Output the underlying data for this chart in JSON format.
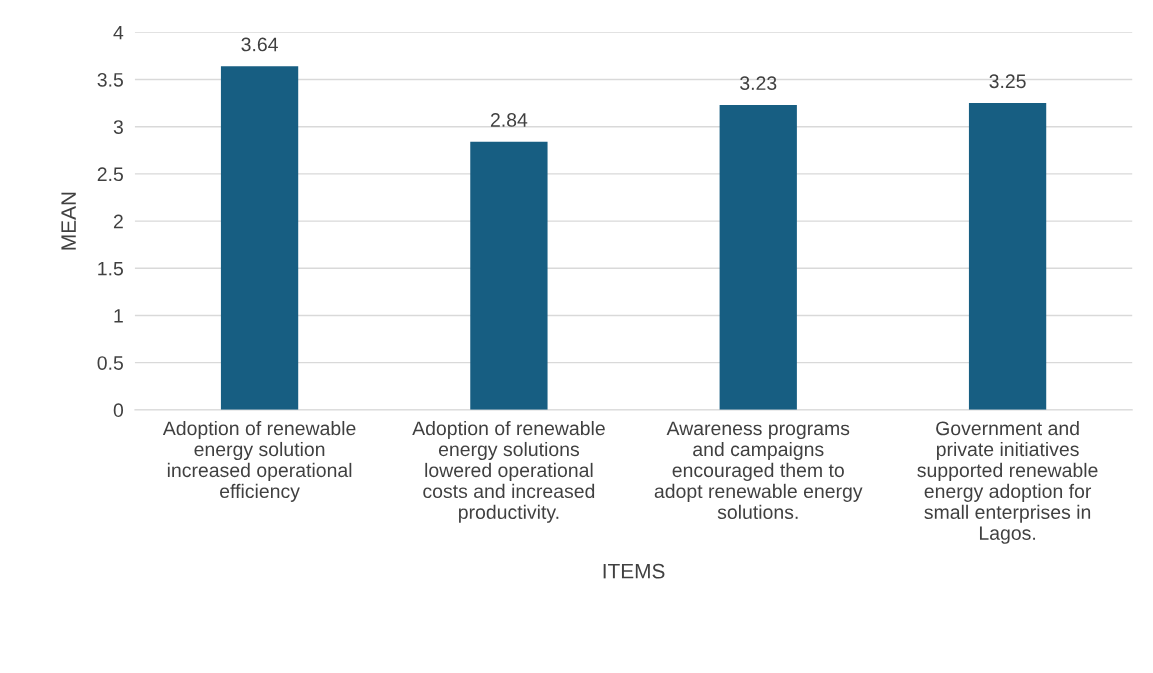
{
  "chart_data": {
    "type": "bar",
    "xlabel": "ITEMS",
    "ylabel": "MEAN",
    "categories": [
      "Adoption of renewable\nenergy solution\nincreased operational\nefficiency",
      "Adoption of renewable\nenergy solutions\nlowered operational\ncosts and increased\nproductivity.",
      "Awareness programs\nand campaigns\nencouraged them to\nadopt renewable energy\nsolutions.",
      "Government and\nprivate initiatives\nsupported renewable\nenergy adoption for\nsmall enterprises in\nLagos."
    ],
    "values": [
      3.64,
      2.84,
      3.23,
      3.25
    ],
    "color": "#175e82",
    "ylim": [
      0,
      4
    ],
    "yticks": [
      0,
      {
        "value": 0.5,
        "label": "0.5"
      },
      1,
      {
        "value": 1.5,
        "label": "1.5"
      },
      2,
      {
        "value": 2.5,
        "label": "2.5"
      },
      3,
      {
        "value": 3.5,
        "label": "3.5"
      },
      4
    ],
    "grid": "y",
    "data_labels": true
  }
}
